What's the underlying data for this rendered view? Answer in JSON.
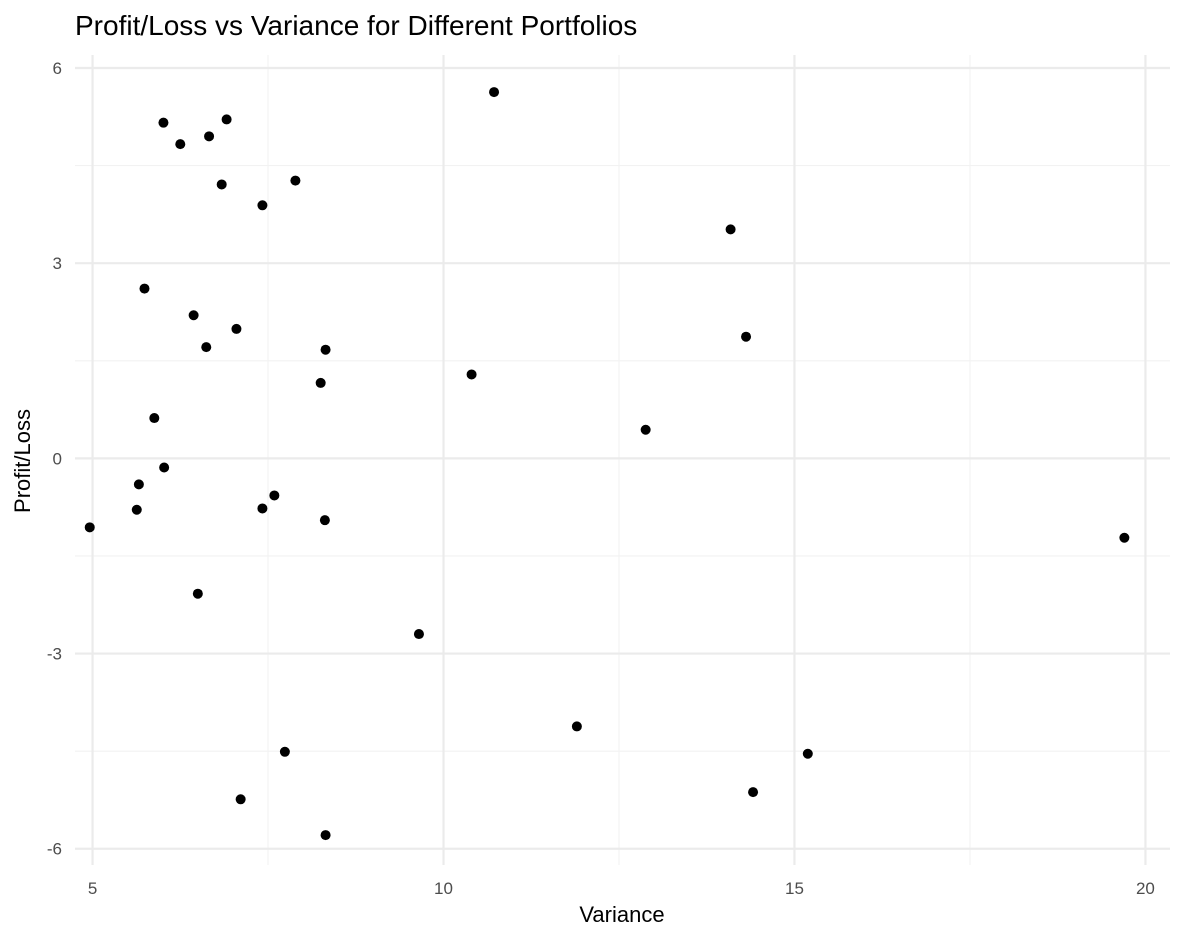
{
  "chart_data": {
    "type": "scatter",
    "title": "Profit/Loss vs Variance for Different Portfolios",
    "xlabel": "Variance",
    "ylabel": "Profit/Loss",
    "xlim": [
      4.75,
      20.35
    ],
    "ylim": [
      -6.25,
      6.2
    ],
    "x_ticks": [
      5,
      10,
      15,
      20
    ],
    "y_ticks": [
      -6,
      -3,
      0,
      3,
      6
    ],
    "x_tick_labels": [
      "5",
      "10",
      "15",
      "20"
    ],
    "y_tick_labels": [
      "-6",
      "-3",
      "0",
      "3",
      "6"
    ],
    "grid": true,
    "point_color": "#000000",
    "grid_color": "#ebebeb",
    "points": [
      {
        "x": 10.72,
        "y": 5.63
      },
      {
        "x": 6.01,
        "y": 5.16
      },
      {
        "x": 6.91,
        "y": 5.21
      },
      {
        "x": 6.66,
        "y": 4.95
      },
      {
        "x": 6.25,
        "y": 4.83
      },
      {
        "x": 6.84,
        "y": 4.21
      },
      {
        "x": 7.89,
        "y": 4.27
      },
      {
        "x": 7.42,
        "y": 3.89
      },
      {
        "x": 14.09,
        "y": 3.52
      },
      {
        "x": 5.74,
        "y": 2.61
      },
      {
        "x": 6.44,
        "y": 2.2
      },
      {
        "x": 7.05,
        "y": 1.99
      },
      {
        "x": 6.62,
        "y": 1.71
      },
      {
        "x": 8.32,
        "y": 1.67
      },
      {
        "x": 14.31,
        "y": 1.87
      },
      {
        "x": 8.25,
        "y": 1.16
      },
      {
        "x": 10.4,
        "y": 1.29
      },
      {
        "x": 5.88,
        "y": 0.62
      },
      {
        "x": 12.88,
        "y": 0.44
      },
      {
        "x": 6.02,
        "y": -0.14
      },
      {
        "x": 5.66,
        "y": -0.4
      },
      {
        "x": 7.59,
        "y": -0.57
      },
      {
        "x": 5.63,
        "y": -0.79
      },
      {
        "x": 7.42,
        "y": -0.77
      },
      {
        "x": 8.31,
        "y": -0.95
      },
      {
        "x": 4.96,
        "y": -1.06
      },
      {
        "x": 19.7,
        "y": -1.22
      },
      {
        "x": 6.5,
        "y": -2.08
      },
      {
        "x": 9.65,
        "y": -2.7
      },
      {
        "x": 11.9,
        "y": -4.12
      },
      {
        "x": 7.74,
        "y": -4.51
      },
      {
        "x": 15.19,
        "y": -4.54
      },
      {
        "x": 14.41,
        "y": -5.13
      },
      {
        "x": 7.11,
        "y": -5.24
      },
      {
        "x": 8.32,
        "y": -5.79
      }
    ]
  }
}
